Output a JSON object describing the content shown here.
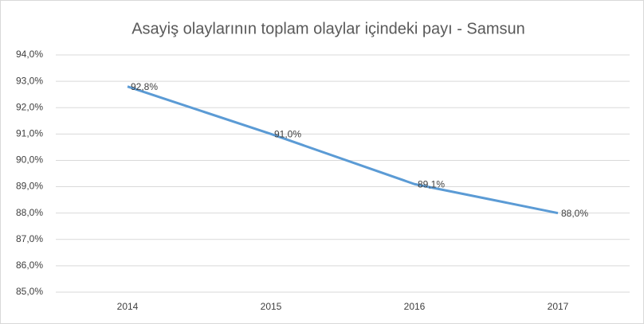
{
  "chart_data": {
    "type": "line",
    "title": "Asayiş olaylarının toplam olaylar içindeki payı - Samsun",
    "categories": [
      "2014",
      "2015",
      "2016",
      "2017"
    ],
    "series": [
      {
        "name": "Samsun",
        "color": "#5b9bd5",
        "values": [
          92.8,
          91.0,
          89.1,
          88.0
        ],
        "value_labels": [
          "92,8%",
          "91,0%",
          "89,1%",
          "88,0%"
        ]
      }
    ],
    "ylim": [
      85,
      94
    ],
    "yticks": [
      {
        "value": 85,
        "label": "85,0%"
      },
      {
        "value": 86,
        "label": "86,0%"
      },
      {
        "value": 87,
        "label": "87,0%"
      },
      {
        "value": 88,
        "label": "88,0%"
      },
      {
        "value": 89,
        "label": "89,0%"
      },
      {
        "value": 90,
        "label": "90,0%"
      },
      {
        "value": 91,
        "label": "91,0%"
      },
      {
        "value": 92,
        "label": "92,0%"
      },
      {
        "value": 93,
        "label": "93,0%"
      },
      {
        "value": 94,
        "label": "94,0%"
      }
    ],
    "grid": true
  }
}
